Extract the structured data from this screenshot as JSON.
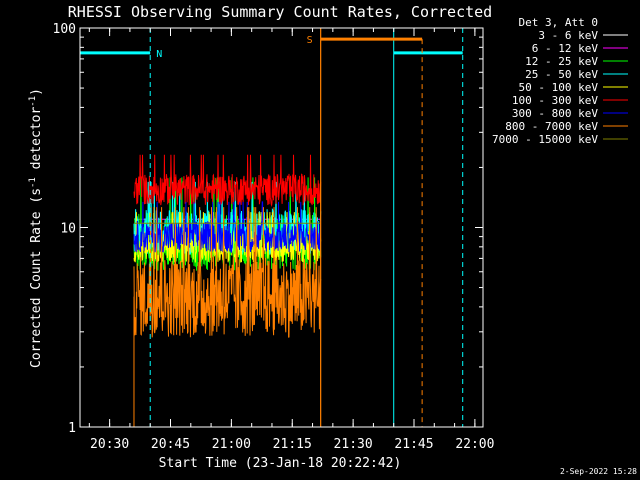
{
  "chart_data": {
    "type": "line",
    "title": "RHESSI Observing Summary Count Rates, Corrected",
    "xlabel": "Start Time (23-Jan-18 20:22:42)",
    "ylabel": "Corrected Count Rate (s",
    "ylabel_sup": "-1",
    "ylabel_mid": " detector",
    "ylabel_end": ")",
    "y_scale": "log",
    "ylim": [
      1,
      100
    ],
    "y_ticks": [
      {
        "value": 1,
        "label": "1"
      },
      {
        "value": 10,
        "label": "10"
      },
      {
        "value": 100,
        "label": "100"
      }
    ],
    "xlim": [
      "20:22:42",
      "22:02:00"
    ],
    "x_ticks": [
      "20:30",
      "20:45",
      "21:00",
      "21:15",
      "21:30",
      "21:45",
      "22:00"
    ],
    "grid": false,
    "legend_header": "Det 3, Att 0",
    "legend_position": "top-right",
    "series": [
      {
        "name": "3 - 6 keV",
        "color": "#000000",
        "level": 12.5,
        "spread": 0.9
      },
      {
        "name": "6 - 12 keV",
        "color": "#ff00ff",
        "level": 11.0,
        "spread": 1.0
      },
      {
        "name": "12 - 25 keV",
        "color": "#00ff00",
        "level": 8.5,
        "spread": 1.4
      },
      {
        "name": "25 - 50 keV",
        "color": "#00ffff",
        "level": 9.5,
        "spread": 1.3
      },
      {
        "name": "50 - 100 keV",
        "color": "#ffff00",
        "level": 8.0,
        "spread": 1.2
      },
      {
        "name": "100 - 300 keV",
        "color": "#ff0000",
        "level": 15.5,
        "spread": 1.2
      },
      {
        "name": "300 - 800 keV",
        "color": "#0000ff",
        "level": 9.0,
        "spread": 1.2
      },
      {
        "name": "800 - 7000 keV",
        "color": "#ff8000",
        "level": 4.5,
        "spread": 1.6
      },
      {
        "name": "7000 - 15000 keV",
        "color": "#808000",
        "level": 10.5,
        "spread": 1.0
      }
    ],
    "data_interval": {
      "start": "20:36:00",
      "end": "21:22:00"
    },
    "night_markers": {
      "label": "N",
      "color": "#00ffff",
      "intervals": [
        {
          "start": "20:22:42",
          "end": "20:40:00"
        },
        {
          "start": "21:40:00",
          "end": "21:57:00"
        }
      ]
    },
    "saa_markers": {
      "label": "S",
      "color": "#ff8000",
      "intervals": [
        {
          "start": "21:22:00",
          "end": "21:47:00"
        }
      ]
    }
  },
  "footer": {
    "date_stamp": "2-Sep-2022 15:28"
  }
}
